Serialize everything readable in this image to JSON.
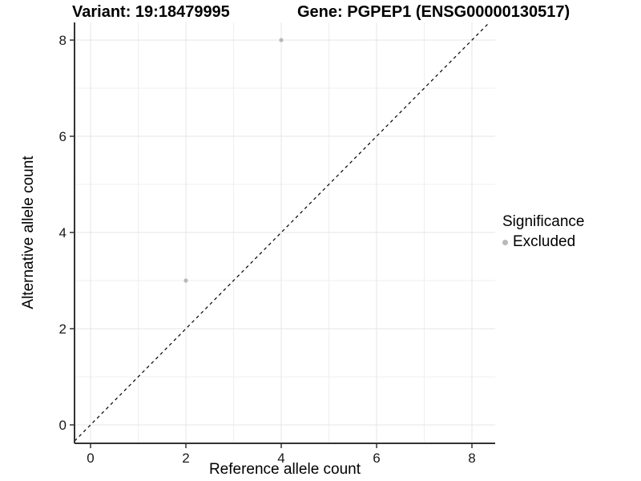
{
  "title": {
    "variant": "Variant: 19:18479995",
    "gene": "Gene: PGPEP1 (ENSG00000130517)"
  },
  "axes": {
    "x": {
      "label": "Reference allele count",
      "tick_labels": [
        "0",
        "2",
        "4",
        "6",
        "8"
      ],
      "tick_values": [
        0,
        2,
        4,
        6,
        8
      ]
    },
    "y": {
      "label": "Alternative allele count",
      "tick_labels": [
        "0",
        "2",
        "4",
        "6",
        "8"
      ],
      "tick_values": [
        0,
        2,
        4,
        6,
        8
      ]
    }
  },
  "legend": {
    "title": "Significance",
    "items": [
      {
        "label": "Excluded",
        "color": "#b9b9b9",
        "marker": "point-icon"
      }
    ]
  },
  "chart_data": {
    "type": "scatter",
    "title": "Variant: 19:18479995 | Gene: PGPEP1 (ENSG00000130517)",
    "xlabel": "Reference allele count",
    "ylabel": "Alternative allele count",
    "xlim": [
      -0.35,
      8.5
    ],
    "ylim": [
      -0.4,
      8.4
    ],
    "grid": {
      "on": true,
      "major": [
        0,
        2,
        4,
        6,
        8
      ],
      "minor": [
        1,
        3,
        5,
        7
      ]
    },
    "series": [
      {
        "name": "Excluded",
        "color": "#b9b9b9",
        "points": [
          {
            "x": 4,
            "y": 8
          },
          {
            "x": 2,
            "y": 3
          }
        ]
      }
    ],
    "reference_line": {
      "kind": "identity y=x",
      "style": "dashed",
      "color": "#000000"
    },
    "legend_position": "right-center"
  },
  "colors": {
    "background": "#ffffff",
    "grid_major": "#e6e6e6",
    "grid_minor": "#efefef",
    "axis_line": "#333333",
    "tick_text": "#1a1a1a",
    "point": "#b9b9b9"
  }
}
